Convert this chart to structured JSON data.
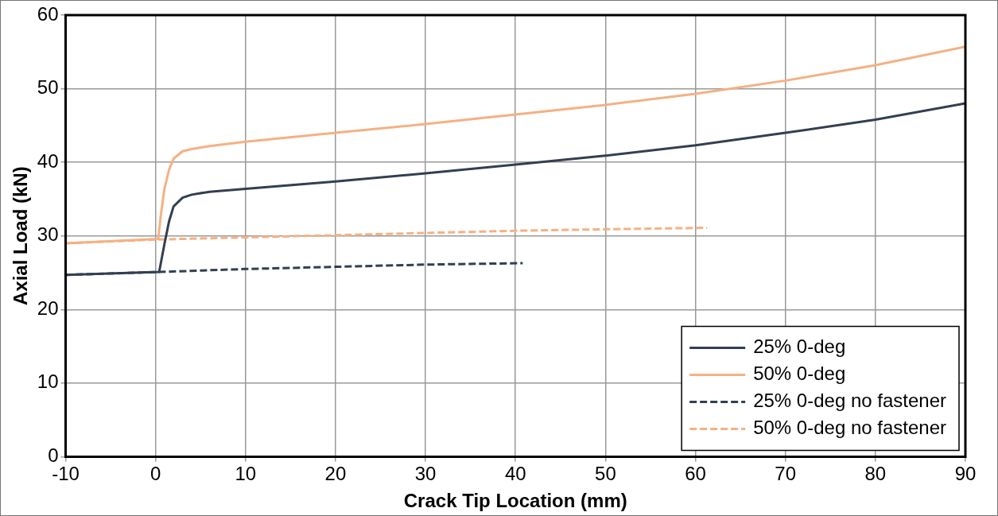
{
  "chart_data": {
    "type": "line",
    "xlabel": "Crack Tip Location (mm)",
    "ylabel": "Axial Load (kN)",
    "xlim": [
      -10,
      90
    ],
    "xticks": [
      -10,
      0,
      10,
      20,
      30,
      40,
      50,
      60,
      70,
      80,
      90
    ],
    "ylim": [
      0,
      60
    ],
    "yticks": [
      0,
      10,
      20,
      30,
      40,
      50,
      60
    ],
    "grid": true,
    "legend": "bottom right",
    "marker": "none",
    "series": [
      {
        "name": "25% 0-deg",
        "color": "#333f50",
        "line_style": "solid",
        "x": [
          -10,
          0.4,
          1,
          1.5,
          2,
          3,
          4,
          6,
          10,
          20,
          30,
          40,
          50,
          60,
          70,
          80,
          90
        ],
        "values": [
          24.7,
          25.1,
          29,
          32,
          34,
          35.2,
          35.6,
          36,
          36.4,
          37.4,
          38.5,
          39.7,
          40.9,
          42.3,
          44,
          45.8,
          48
        ]
      },
      {
        "name": "50% 0-deg",
        "color": "#f4b183",
        "line_style": "solid",
        "x": [
          -10,
          0.3,
          0.6,
          1,
          1.5,
          2,
          3,
          4,
          6,
          10,
          20,
          30,
          40,
          50,
          60,
          70,
          80,
          90
        ],
        "values": [
          29,
          29.6,
          33,
          36.5,
          39,
          40.5,
          41.5,
          41.8,
          42.2,
          42.8,
          44,
          45.2,
          46.5,
          47.8,
          49.3,
          51.1,
          53.2,
          55.7
        ]
      },
      {
        "name": "25% 0-deg no fastener",
        "color": "#333f50",
        "line_style": "dashed",
        "x": [
          -10,
          0.4,
          10,
          20,
          30,
          40.8
        ],
        "values": [
          24.7,
          25.1,
          25.5,
          25.8,
          26.1,
          26.3
        ]
      },
      {
        "name": "50% 0-deg no fastener",
        "color": "#f4b183",
        "line_style": "dashed",
        "x": [
          -10,
          0,
          10,
          20,
          30,
          40,
          50,
          61.3
        ],
        "values": [
          29,
          29.5,
          29.8,
          30.1,
          30.4,
          30.7,
          30.9,
          31.1
        ]
      }
    ]
  }
}
